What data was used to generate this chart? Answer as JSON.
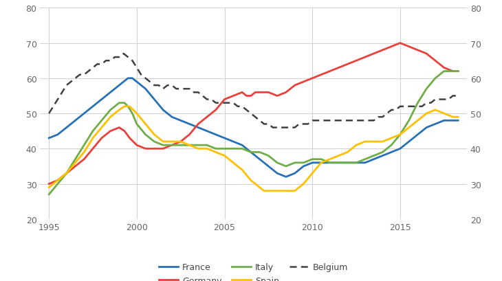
{
  "xlim": [
    1994.5,
    2018.8
  ],
  "ylim": [
    20,
    80
  ],
  "yticks": [
    20,
    30,
    40,
    50,
    60,
    70,
    80
  ],
  "xticks": [
    1995,
    2000,
    2005,
    2010,
    2015
  ],
  "grid_color": "#d0d0d0",
  "background_color": "#ffffff",
  "series": {
    "France": {
      "color": "#2870b5",
      "linewidth": 2.0,
      "linestyle": "solid",
      "x": [
        1995,
        1995.5,
        1996,
        1996.5,
        1997,
        1997.5,
        1998,
        1998.5,
        1999,
        1999.25,
        1999.5,
        1999.75,
        2000,
        2000.5,
        2001,
        2001.5,
        2002,
        2002.5,
        2003,
        2003.5,
        2004,
        2004.5,
        2005,
        2005.5,
        2006,
        2006.5,
        2007,
        2007.5,
        2008,
        2008.5,
        2009,
        2009.5,
        2010,
        2010.5,
        2011,
        2011.5,
        2012,
        2012.5,
        2013,
        2013.5,
        2014,
        2014.5,
        2015,
        2015.5,
        2016,
        2016.5,
        2017,
        2017.5,
        2018,
        2018.3
      ],
      "y": [
        43,
        44,
        46,
        48,
        50,
        52,
        54,
        56,
        58,
        59,
        60,
        60,
        59,
        57,
        54,
        51,
        49,
        48,
        47,
        46,
        45,
        44,
        43,
        42,
        41,
        39,
        37,
        35,
        33,
        32,
        33,
        35,
        36,
        36,
        36,
        36,
        36,
        36,
        36,
        37,
        38,
        39,
        40,
        42,
        44,
        46,
        47,
        48,
        48,
        48
      ]
    },
    "Germany": {
      "color": "#e8403a",
      "linewidth": 2.0,
      "linestyle": "solid",
      "x": [
        1995,
        1995.5,
        1996,
        1996.5,
        1997,
        1997.5,
        1998,
        1998.5,
        1999,
        1999.3,
        1999.6,
        2000,
        2000.5,
        2001,
        2001.5,
        2002,
        2002.5,
        2003,
        2003.5,
        2004,
        2004.5,
        2005,
        2005.5,
        2006,
        2006.25,
        2006.5,
        2006.75,
        2007,
        2007.5,
        2008,
        2008.5,
        2009,
        2009.5,
        2010,
        2010.5,
        2011,
        2011.5,
        2012,
        2012.5,
        2013,
        2013.5,
        2014,
        2014.5,
        2015,
        2015.5,
        2016,
        2016.5,
        2017,
        2017.5,
        2018,
        2018.3
      ],
      "y": [
        30,
        31,
        33,
        35,
        37,
        40,
        43,
        45,
        46,
        45,
        43,
        41,
        40,
        40,
        40,
        41,
        42,
        44,
        47,
        49,
        51,
        54,
        55,
        56,
        55,
        55,
        56,
        56,
        56,
        55,
        56,
        58,
        59,
        60,
        61,
        62,
        63,
        64,
        65,
        66,
        67,
        68,
        69,
        70,
        69,
        68,
        67,
        65,
        63,
        62,
        62
      ]
    },
    "Italy": {
      "color": "#70ad47",
      "linewidth": 2.0,
      "linestyle": "solid",
      "x": [
        1995,
        1995.5,
        1996,
        1996.5,
        1997,
        1997.5,
        1998,
        1998.5,
        1999,
        1999.3,
        1999.5,
        1999.75,
        2000,
        2000.5,
        2001,
        2001.5,
        2002,
        2002.5,
        2003,
        2003.5,
        2004,
        2004.5,
        2005,
        2005.5,
        2006,
        2006.5,
        2007,
        2007.5,
        2008,
        2008.5,
        2009,
        2009.5,
        2010,
        2010.5,
        2011,
        2011.5,
        2012,
        2012.5,
        2013,
        2013.5,
        2014,
        2014.5,
        2015,
        2015.5,
        2016,
        2016.5,
        2017,
        2017.5,
        2018,
        2018.3
      ],
      "y": [
        27,
        30,
        33,
        37,
        41,
        45,
        48,
        51,
        53,
        53,
        52,
        50,
        47,
        44,
        42,
        41,
        41,
        41,
        41,
        41,
        41,
        40,
        40,
        40,
        40,
        39,
        39,
        38,
        36,
        35,
        36,
        36,
        37,
        37,
        36,
        36,
        36,
        36,
        37,
        38,
        39,
        41,
        44,
        48,
        53,
        57,
        60,
        62,
        62,
        62
      ]
    },
    "Spain": {
      "color": "#ffc000",
      "linewidth": 2.0,
      "linestyle": "solid",
      "x": [
        1995,
        1995.5,
        1996,
        1996.5,
        1997,
        1997.5,
        1998,
        1998.5,
        1999,
        1999.3,
        1999.6,
        2000,
        2000.5,
        2001,
        2001.5,
        2002,
        2002.5,
        2003,
        2003.5,
        2004,
        2004.5,
        2005,
        2005.5,
        2006,
        2006.5,
        2007,
        2007.25,
        2007.5,
        2007.75,
        2008,
        2008.5,
        2009,
        2009.5,
        2010,
        2010.5,
        2011,
        2011.5,
        2012,
        2012.5,
        2013,
        2013.5,
        2014,
        2014.5,
        2015,
        2015.5,
        2016,
        2016.5,
        2017,
        2017.5,
        2018,
        2018.3
      ],
      "y": [
        29,
        31,
        33,
        36,
        39,
        43,
        46,
        49,
        51,
        52,
        52,
        50,
        47,
        44,
        42,
        42,
        42,
        41,
        40,
        40,
        39,
        38,
        36,
        34,
        31,
        29,
        28,
        28,
        28,
        28,
        28,
        28,
        30,
        33,
        36,
        37,
        38,
        39,
        41,
        42,
        42,
        42,
        43,
        44,
        46,
        48,
        50,
        51,
        50,
        49,
        49
      ]
    },
    "Belgium": {
      "color": "#404040",
      "linewidth": 1.8,
      "linestyle": "dashed",
      "x": [
        1995,
        1995.25,
        1995.5,
        1995.75,
        1996,
        1996.25,
        1996.5,
        1996.75,
        1997,
        1997.25,
        1997.5,
        1997.75,
        1998,
        1998.25,
        1998.5,
        1998.75,
        1999,
        1999.25,
        1999.5,
        1999.75,
        2000,
        2000.25,
        2000.5,
        2000.75,
        2001,
        2001.25,
        2001.5,
        2001.75,
        2002,
        2002.25,
        2002.5,
        2002.75,
        2003,
        2003.25,
        2003.5,
        2003.75,
        2004,
        2004.25,
        2004.5,
        2004.75,
        2005,
        2005.25,
        2005.5,
        2005.75,
        2006,
        2006.25,
        2006.5,
        2006.75,
        2007,
        2007.25,
        2007.5,
        2007.75,
        2008,
        2008.25,
        2008.5,
        2008.75,
        2009,
        2009.25,
        2009.5,
        2009.75,
        2010,
        2010.25,
        2010.5,
        2010.75,
        2011,
        2011.25,
        2011.5,
        2011.75,
        2012,
        2012.25,
        2012.5,
        2012.75,
        2013,
        2013.25,
        2013.5,
        2013.75,
        2014,
        2014.25,
        2014.5,
        2014.75,
        2015,
        2015.25,
        2015.5,
        2015.75,
        2016,
        2016.25,
        2016.5,
        2016.75,
        2017,
        2017.25,
        2017.5,
        2017.75,
        2018,
        2018.3
      ],
      "y": [
        50,
        52,
        54,
        56,
        58,
        59,
        60,
        61,
        61,
        62,
        63,
        64,
        64,
        65,
        65,
        66,
        66,
        67,
        66,
        65,
        63,
        61,
        60,
        59,
        58,
        58,
        57,
        58,
        58,
        57,
        57,
        57,
        57,
        56,
        56,
        55,
        54,
        54,
        53,
        53,
        53,
        53,
        53,
        52,
        52,
        51,
        50,
        49,
        48,
        47,
        47,
        46,
        46,
        46,
        46,
        46,
        46,
        47,
        47,
        47,
        48,
        48,
        48,
        48,
        48,
        48,
        48,
        48,
        48,
        48,
        48,
        48,
        48,
        48,
        48,
        49,
        49,
        50,
        51,
        51,
        52,
        52,
        52,
        52,
        52,
        52,
        53,
        53,
        54,
        54,
        54,
        54,
        55,
        55
      ]
    }
  },
  "legend_order": [
    "France",
    "Germany",
    "Italy",
    "Spain",
    "Belgium"
  ]
}
